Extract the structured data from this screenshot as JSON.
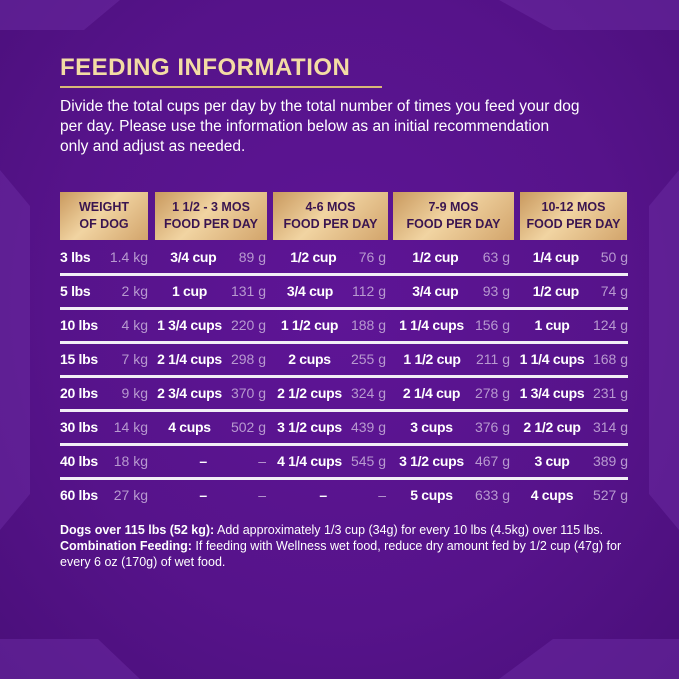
{
  "title": "FEEDING INFORMATION",
  "intro": "Divide the total cups per day by the total number of times you feed your dog per day. Please use the information below as an initial recommendation only and adjust as needed.",
  "headers": [
    {
      "l1": "WEIGHT",
      "l2": "OF DOG"
    },
    {
      "l1": "1 1/2 - 3 MOS",
      "l2": "FOOD PER DAY"
    },
    {
      "l1": "4-6 MOS",
      "l2": "FOOD PER DAY"
    },
    {
      "l1": "7-9 MOS",
      "l2": "FOOD PER DAY"
    },
    {
      "l1": "10-12 MOS",
      "l2": "FOOD PER DAY"
    }
  ],
  "rows": [
    {
      "lbs": "3 lbs",
      "kg": "1.4 kg",
      "c": [
        [
          "3/4 cup",
          "89 g"
        ],
        [
          "1/2 cup",
          "76 g"
        ],
        [
          "1/2 cup",
          "63 g"
        ],
        [
          "1/4 cup",
          "50 g"
        ]
      ]
    },
    {
      "lbs": "5 lbs",
      "kg": "2 kg",
      "c": [
        [
          "1 cup",
          "131 g"
        ],
        [
          "3/4 cup",
          "112 g"
        ],
        [
          "3/4 cup",
          "93 g"
        ],
        [
          "1/2 cup",
          "74 g"
        ]
      ]
    },
    {
      "lbs": "10 lbs",
      "kg": "4 kg",
      "c": [
        [
          "1 3/4 cups",
          "220 g"
        ],
        [
          "1 1/2 cup",
          "188 g"
        ],
        [
          "1 1/4 cups",
          "156 g"
        ],
        [
          "1 cup",
          "124 g"
        ]
      ]
    },
    {
      "lbs": "15 lbs",
      "kg": "7 kg",
      "c": [
        [
          "2 1/4 cups",
          "298 g"
        ],
        [
          "2 cups",
          "255 g"
        ],
        [
          "1 1/2 cup",
          "211 g"
        ],
        [
          "1 1/4 cups",
          "168 g"
        ]
      ]
    },
    {
      "lbs": "20 lbs",
      "kg": "9 kg",
      "c": [
        [
          "2 3/4 cups",
          "370 g"
        ],
        [
          "2 1/2 cups",
          "324 g"
        ],
        [
          "2 1/4 cup",
          "278 g"
        ],
        [
          "1 3/4 cups",
          "231 g"
        ]
      ]
    },
    {
      "lbs": "30 lbs",
      "kg": "14 kg",
      "c": [
        [
          "4 cups",
          "502 g"
        ],
        [
          "3 1/2 cups",
          "439 g"
        ],
        [
          "3 cups",
          "376 g"
        ],
        [
          "2 1/2 cup",
          "314 g"
        ]
      ]
    },
    {
      "lbs": "40 lbs",
      "kg": "18 kg",
      "c": [
        [
          "–",
          "–"
        ],
        [
          "4 1/4 cups",
          "545 g"
        ],
        [
          "3 1/2 cups",
          "467 g"
        ],
        [
          "3 cup",
          "389 g"
        ]
      ]
    },
    {
      "lbs": "60 lbs",
      "kg": "27 kg",
      "c": [
        [
          "–",
          "–"
        ],
        [
          "–",
          "–"
        ],
        [
          "5 cups",
          "633 g"
        ],
        [
          "4 cups",
          "527 g"
        ]
      ]
    }
  ],
  "footer": {
    "b1": "Dogs over 115 lbs (52 kg):",
    "t1": " Add approximately 1/3 cup (34g) for every 10 lbs (4.5kg) over 115 lbs. ",
    "b2": "Combination Feeding:",
    "t2": " If feeding with Wellness wet food, reduce dry amount fed by 1/2 cup (47g) for every 6 oz (170g) of wet food."
  },
  "colors": {
    "background": "#5b1690",
    "title": "#f3dca4",
    "header_gold": "#e6c48c",
    "grams": "#b89ad0"
  }
}
